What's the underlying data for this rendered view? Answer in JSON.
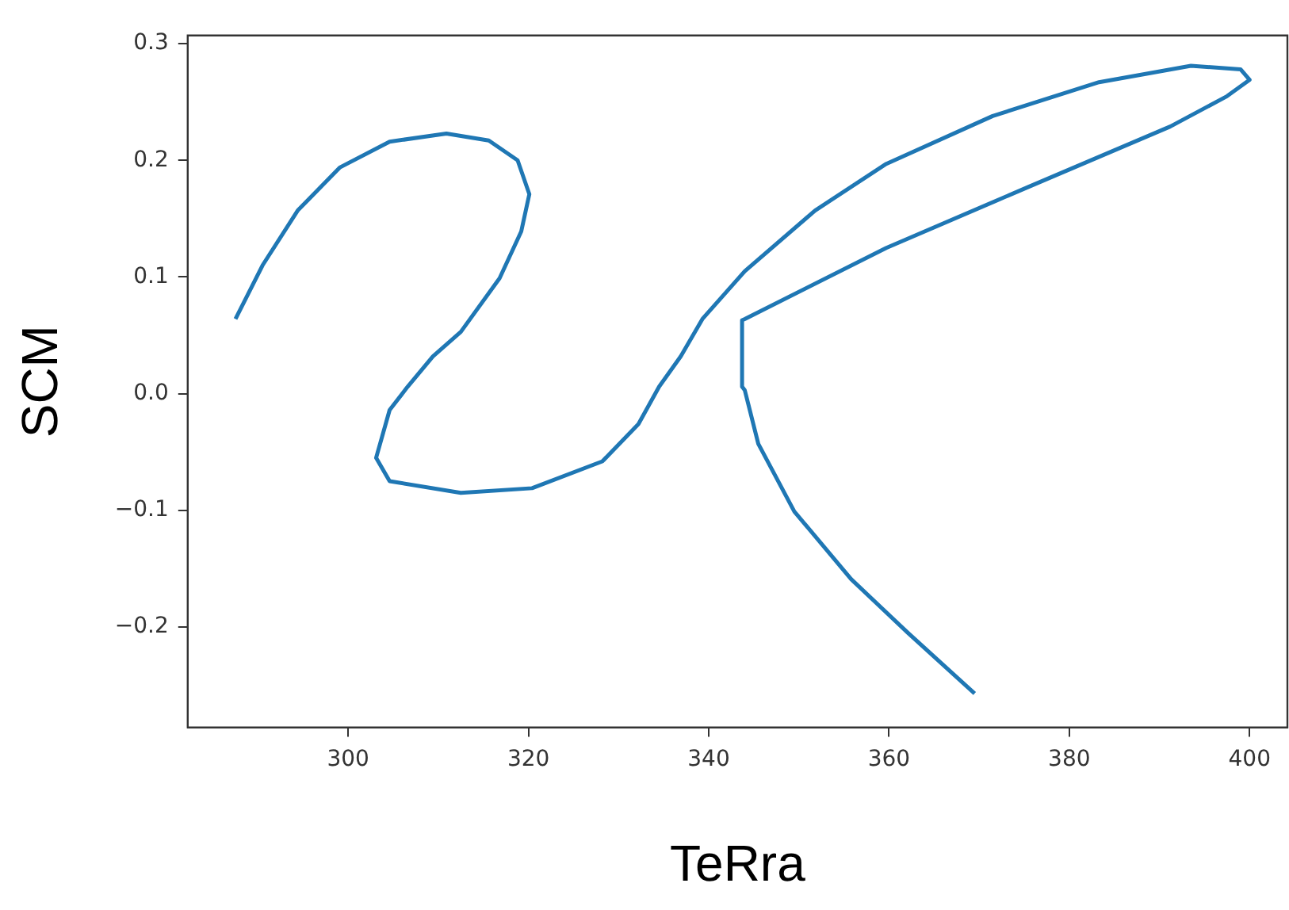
{
  "chart_data": {
    "type": "line",
    "xlabel": "TeRra",
    "ylabel": "SCM",
    "series": [
      {
        "color": "#1f77b4",
        "x": [
          287.5,
          290.5,
          294.4,
          299.1,
          304.6,
          310.9,
          315.6,
          318.8,
          320.1,
          319.2,
          316.8,
          312.5,
          309.4,
          306.6,
          304.6,
          303.1,
          304.6,
          312.5,
          320.4,
          328.2,
          332.2,
          334.5,
          336.9,
          339.3,
          344.0,
          351.8,
          359.7,
          371.5,
          383.3,
          393.5,
          399.0,
          400.0,
          397.5,
          391.2,
          375.4,
          359.7,
          344.0,
          343.7,
          343.7,
          344.0,
          345.5,
          349.5,
          355.8,
          362.1,
          369.5
        ],
        "values": [
          0.064,
          0.11,
          0.157,
          0.194,
          0.216,
          0.223,
          0.217,
          0.2,
          0.171,
          0.139,
          0.099,
          0.053,
          0.032,
          0.006,
          -0.014,
          -0.055,
          -0.075,
          -0.085,
          -0.081,
          -0.058,
          -0.026,
          0.006,
          0.032,
          0.064,
          0.105,
          0.157,
          0.197,
          0.238,
          0.267,
          0.281,
          0.278,
          0.269,
          0.255,
          0.229,
          0.177,
          0.125,
          0.064,
          0.063,
          0.006,
          0.003,
          -0.043,
          -0.101,
          -0.159,
          -0.205,
          -0.257
        ]
      }
    ],
    "xlim": [
      282.2,
      404.2
    ],
    "xticks": [
      300,
      320,
      340,
      360,
      380,
      400
    ],
    "ylim": [
      -0.286,
      0.307
    ],
    "yticks": [
      {
        "value": -0.2,
        "label": "−0.2"
      },
      {
        "value": -0.1,
        "label": "−0.1"
      },
      {
        "value": 0,
        "label": "0.0"
      },
      {
        "value": 0.1,
        "label": "0.1"
      },
      {
        "value": 0.2,
        "label": "0.2"
      },
      {
        "value": 0.3,
        "label": "0.3"
      }
    ],
    "grid": false,
    "legend": false
  }
}
